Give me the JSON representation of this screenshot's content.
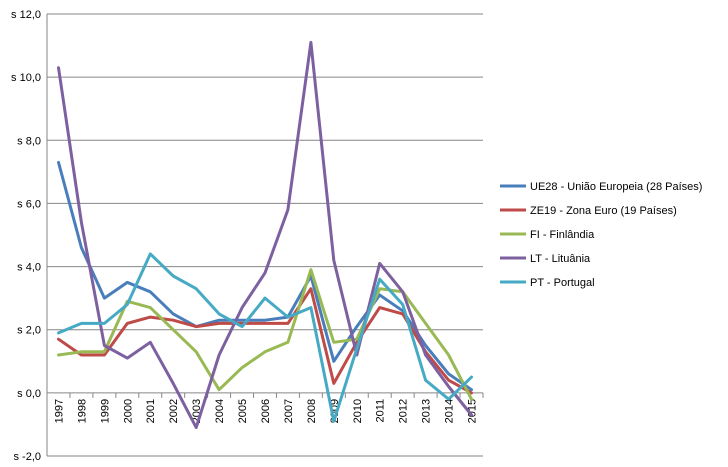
{
  "chart_data": {
    "type": "line",
    "title": "",
    "xlabel": "",
    "ylabel": "",
    "ylim": [
      -2.0,
      12.0
    ],
    "y_ticks": [
      "s -2,0",
      "s 0,0",
      "s 2,0",
      "s 4,0",
      "s 6,0",
      "s 8,0",
      "s 10,0",
      "s 12,0"
    ],
    "y_tick_values": [
      -2,
      0,
      2,
      4,
      6,
      8,
      10,
      12
    ],
    "grid": true,
    "legend_position": "right",
    "categories": [
      "1997",
      "1998",
      "1999",
      "2000",
      "2001",
      "2002",
      "2003",
      "2004",
      "2005",
      "2006",
      "2007",
      "2008",
      "2009",
      "2010",
      "2011",
      "2012",
      "2013",
      "2014",
      "2015"
    ],
    "series": [
      {
        "name": "UE28 - União Europeia (28 Países)",
        "color": "#4A7EBB",
        "values": [
          7.3,
          4.6,
          3.0,
          3.5,
          3.2,
          2.5,
          2.1,
          2.3,
          2.3,
          2.3,
          2.4,
          3.7,
          1.0,
          2.1,
          3.1,
          2.6,
          1.5,
          0.6,
          0.1
        ]
      },
      {
        "name": "ZE19 - Zona Euro (19 Países)",
        "color": "#BE4B48",
        "values": [
          1.7,
          1.2,
          1.2,
          2.2,
          2.4,
          2.3,
          2.1,
          2.2,
          2.2,
          2.2,
          2.2,
          3.3,
          0.3,
          1.6,
          2.7,
          2.5,
          1.3,
          0.4,
          0.0
        ]
      },
      {
        "name": "FI - Finlândia",
        "color": "#98B954",
        "values": [
          1.2,
          1.3,
          1.3,
          2.9,
          2.7,
          2.0,
          1.3,
          0.1,
          0.8,
          1.3,
          1.6,
          3.9,
          1.6,
          1.7,
          3.3,
          3.2,
          2.2,
          1.2,
          -0.2
        ]
      },
      {
        "name": "LT - Lituânia",
        "color": "#7D60A0",
        "values": [
          10.3,
          5.4,
          1.5,
          1.1,
          1.6,
          0.3,
          -1.1,
          1.2,
          2.7,
          3.8,
          5.8,
          11.1,
          4.2,
          1.2,
          4.1,
          3.2,
          1.2,
          0.2,
          -0.7
        ]
      },
      {
        "name": "PT - Portugal",
        "color": "#46AAC5",
        "values": [
          1.9,
          2.2,
          2.2,
          2.8,
          4.4,
          3.7,
          3.3,
          2.5,
          2.1,
          3.0,
          2.4,
          2.7,
          -0.9,
          1.4,
          3.6,
          2.8,
          0.4,
          -0.2,
          0.5
        ]
      }
    ]
  }
}
